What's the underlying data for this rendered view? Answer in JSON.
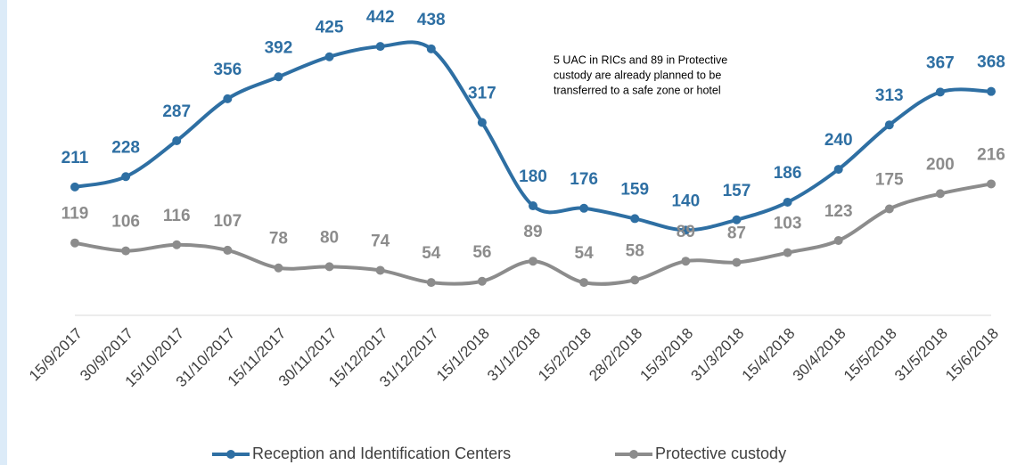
{
  "chart_data": {
    "type": "line",
    "categories": [
      "15/9/2017",
      "30/9/2017",
      "15/10/2017",
      "31/10/2017",
      "15/11/2017",
      "30/11/2017",
      "15/12/2017",
      "31/12/2017",
      "15/1/2018",
      "31/1/2018",
      "15/2/2018",
      "28/2/2018",
      "15/3/2018",
      "31/3/2018",
      "15/4/2018",
      "30/4/2018",
      "15/5/2018",
      "31/5/2018",
      "15/6/2018"
    ],
    "series": [
      {
        "name": "Reception and Identification Centers",
        "color": "#2e6fa3",
        "values": [
          211,
          228,
          287,
          356,
          392,
          425,
          442,
          438,
          317,
          180,
          176,
          159,
          140,
          157,
          186,
          240,
          313,
          367,
          368
        ]
      },
      {
        "name": "Protective custody",
        "color": "#8c8c8c",
        "values": [
          119,
          106,
          116,
          107,
          78,
          80,
          74,
          54,
          56,
          89,
          54,
          58,
          89,
          87,
          103,
          123,
          175,
          200,
          216
        ]
      }
    ],
    "ylim": [
      0,
      500
    ],
    "annotation": [
      "5 UAC in RICs and 89 in Protective",
      "custody are already planned to be",
      "transferred to a safe zone or hotel"
    ]
  }
}
